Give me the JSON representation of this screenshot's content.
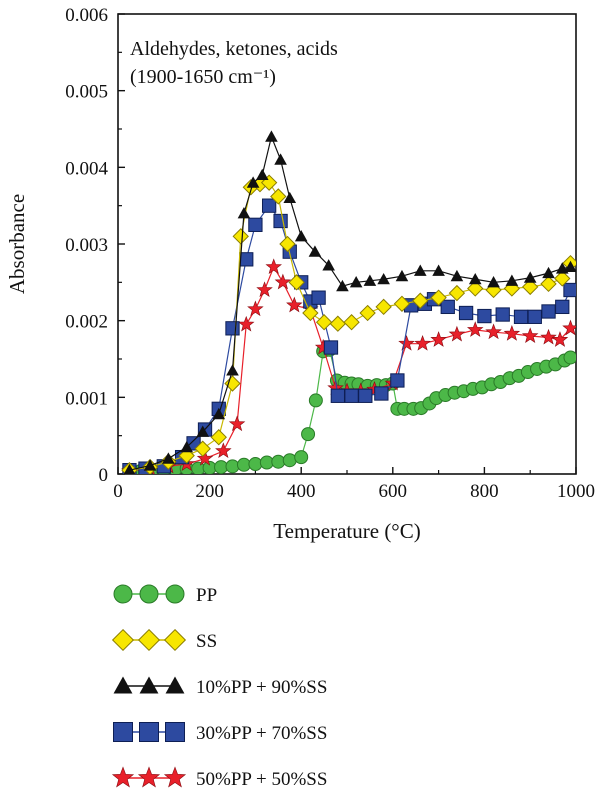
{
  "chart_data": {
    "type": "line",
    "annotation": {
      "line1": "Aldehydes, ketones, acids",
      "line2": "(1900-1650 cm⁻¹)"
    },
    "xlabel": "Temperature (°C)",
    "ylabel": "Absorbance",
    "xlim": [
      0,
      1000
    ],
    "ylim": [
      0,
      0.006
    ],
    "xticks": [
      "0",
      "200",
      "400",
      "600",
      "800",
      "1000"
    ],
    "yticks": [
      "0",
      "0.001",
      "0.002",
      "0.003",
      "0.004",
      "0.005",
      "0.006"
    ],
    "grid": false,
    "legend_position": "below",
    "series": [
      {
        "name": "PP",
        "marker": "circle",
        "color": "#4cb848",
        "points": [
          [
            25,
            4e-05
          ],
          [
            50,
            4e-05
          ],
          [
            75,
            5e-05
          ],
          [
            100,
            5e-05
          ],
          [
            125,
            6e-05
          ],
          [
            150,
            7e-05
          ],
          [
            175,
            7e-05
          ],
          [
            200,
            8e-05
          ],
          [
            225,
            9e-05
          ],
          [
            250,
            0.0001
          ],
          [
            275,
            0.00012
          ],
          [
            300,
            0.00013
          ],
          [
            325,
            0.00015
          ],
          [
            350,
            0.00016
          ],
          [
            375,
            0.00018
          ],
          [
            400,
            0.00022
          ],
          [
            415,
            0.00052
          ],
          [
            432,
            0.00096
          ],
          [
            448,
            0.0016
          ],
          [
            462,
            0.00162
          ],
          [
            478,
            0.00122
          ],
          [
            495,
            0.00119
          ],
          [
            510,
            0.00118
          ],
          [
            525,
            0.00117
          ],
          [
            545,
            0.00115
          ],
          [
            565,
            0.00116
          ],
          [
            585,
            0.00116
          ],
          [
            600,
            0.00118
          ],
          [
            610,
            0.00085
          ],
          [
            625,
            0.00085
          ],
          [
            645,
            0.00085
          ],
          [
            662,
            0.00086
          ],
          [
            680,
            0.00092
          ],
          [
            695,
            0.00099
          ],
          [
            715,
            0.00103
          ],
          [
            735,
            0.00106
          ],
          [
            755,
            0.00108
          ],
          [
            775,
            0.00111
          ],
          [
            795,
            0.00113
          ],
          [
            815,
            0.00117
          ],
          [
            835,
            0.0012
          ],
          [
            855,
            0.00125
          ],
          [
            875,
            0.00128
          ],
          [
            895,
            0.00133
          ],
          [
            915,
            0.00137
          ],
          [
            935,
            0.0014
          ],
          [
            955,
            0.00143
          ],
          [
            975,
            0.00148
          ],
          [
            988,
            0.00152
          ]
        ]
      },
      {
        "name": "SS",
        "marker": "diamond",
        "color": "#f7e600",
        "points": [
          [
            25,
            5e-05
          ],
          [
            70,
            9e-05
          ],
          [
            110,
            0.00016
          ],
          [
            150,
            0.00024
          ],
          [
            185,
            0.00033
          ],
          [
            220,
            0.00048
          ],
          [
            250,
            0.00118
          ],
          [
            268,
            0.0031
          ],
          [
            290,
            0.00374
          ],
          [
            310,
            0.00378
          ],
          [
            330,
            0.0038
          ],
          [
            350,
            0.00362
          ],
          [
            370,
            0.003
          ],
          [
            390,
            0.0025
          ],
          [
            420,
            0.0021
          ],
          [
            450,
            0.00198
          ],
          [
            480,
            0.00196
          ],
          [
            510,
            0.00198
          ],
          [
            545,
            0.0021
          ],
          [
            580,
            0.00218
          ],
          [
            620,
            0.00222
          ],
          [
            660,
            0.00226
          ],
          [
            700,
            0.0023
          ],
          [
            740,
            0.00236
          ],
          [
            780,
            0.00242
          ],
          [
            820,
            0.0024
          ],
          [
            860,
            0.00242
          ],
          [
            900,
            0.00244
          ],
          [
            940,
            0.00248
          ],
          [
            970,
            0.00255
          ],
          [
            988,
            0.00275
          ]
        ]
      },
      {
        "name": "10%PP + 90%SS",
        "marker": "triangle",
        "color": "#111111",
        "points": [
          [
            25,
            5e-05
          ],
          [
            70,
            0.00011
          ],
          [
            110,
            0.0002
          ],
          [
            150,
            0.00035
          ],
          [
            185,
            0.00055
          ],
          [
            220,
            0.00078
          ],
          [
            250,
            0.00135
          ],
          [
            275,
            0.0034
          ],
          [
            295,
            0.0038
          ],
          [
            315,
            0.0039
          ],
          [
            335,
            0.0044
          ],
          [
            355,
            0.0041
          ],
          [
            375,
            0.0036
          ],
          [
            400,
            0.0031
          ],
          [
            430,
            0.0029
          ],
          [
            460,
            0.00272
          ],
          [
            490,
            0.00245
          ],
          [
            520,
            0.0025
          ],
          [
            550,
            0.00252
          ],
          [
            580,
            0.00254
          ],
          [
            620,
            0.00258
          ],
          [
            660,
            0.00265
          ],
          [
            700,
            0.00265
          ],
          [
            740,
            0.00258
          ],
          [
            780,
            0.00254
          ],
          [
            820,
            0.0025
          ],
          [
            860,
            0.00252
          ],
          [
            900,
            0.00256
          ],
          [
            940,
            0.00262
          ],
          [
            970,
            0.00268
          ],
          [
            988,
            0.0027
          ]
        ]
      },
      {
        "name": "30%PP + 70%SS",
        "marker": "square",
        "color": "#2d4aa0",
        "points": [
          [
            25,
            5e-05
          ],
          [
            60,
            7e-05
          ],
          [
            100,
            0.0001
          ],
          [
            140,
            0.00022
          ],
          [
            165,
            0.0004
          ],
          [
            190,
            0.00058
          ],
          [
            220,
            0.00085
          ],
          [
            250,
            0.0019
          ],
          [
            280,
            0.0028
          ],
          [
            300,
            0.00325
          ],
          [
            330,
            0.0035
          ],
          [
            355,
            0.0033
          ],
          [
            375,
            0.0029
          ],
          [
            400,
            0.0025
          ],
          [
            420,
            0.00225
          ],
          [
            438,
            0.0023
          ],
          [
            465,
            0.00165
          ],
          [
            480,
            0.00102
          ],
          [
            510,
            0.00102
          ],
          [
            540,
            0.00102
          ],
          [
            575,
            0.00105
          ],
          [
            610,
            0.00122
          ],
          [
            640,
            0.0022
          ],
          [
            670,
            0.00222
          ],
          [
            690,
            0.00228
          ],
          [
            720,
            0.00218
          ],
          [
            760,
            0.0021
          ],
          [
            800,
            0.00206
          ],
          [
            840,
            0.00208
          ],
          [
            880,
            0.00205
          ],
          [
            910,
            0.00205
          ],
          [
            940,
            0.00212
          ],
          [
            970,
            0.00218
          ],
          [
            988,
            0.0024
          ]
        ]
      },
      {
        "name": "50%PP + 50%SS",
        "marker": "star",
        "color": "#e8202a",
        "points": [
          [
            25,
            4e-05
          ],
          [
            70,
            7e-05
          ],
          [
            110,
            0.0001
          ],
          [
            150,
            0.00013
          ],
          [
            190,
            0.0002
          ],
          [
            230,
            0.0003
          ],
          [
            260,
            0.00065
          ],
          [
            280,
            0.00195
          ],
          [
            300,
            0.00215
          ],
          [
            320,
            0.0024
          ],
          [
            340,
            0.0027
          ],
          [
            360,
            0.0025
          ],
          [
            385,
            0.0022
          ],
          [
            420,
            0.00215
          ],
          [
            448,
            0.00165
          ],
          [
            475,
            0.00112
          ],
          [
            500,
            0.00108
          ],
          [
            530,
            0.00108
          ],
          [
            560,
            0.0011
          ],
          [
            600,
            0.00118
          ],
          [
            630,
            0.0017
          ],
          [
            665,
            0.0017
          ],
          [
            700,
            0.00175
          ],
          [
            740,
            0.00182
          ],
          [
            780,
            0.00188
          ],
          [
            820,
            0.00185
          ],
          [
            860,
            0.00183
          ],
          [
            900,
            0.0018
          ],
          [
            940,
            0.00178
          ],
          [
            965,
            0.00175
          ],
          [
            988,
            0.0019
          ]
        ]
      }
    ]
  }
}
